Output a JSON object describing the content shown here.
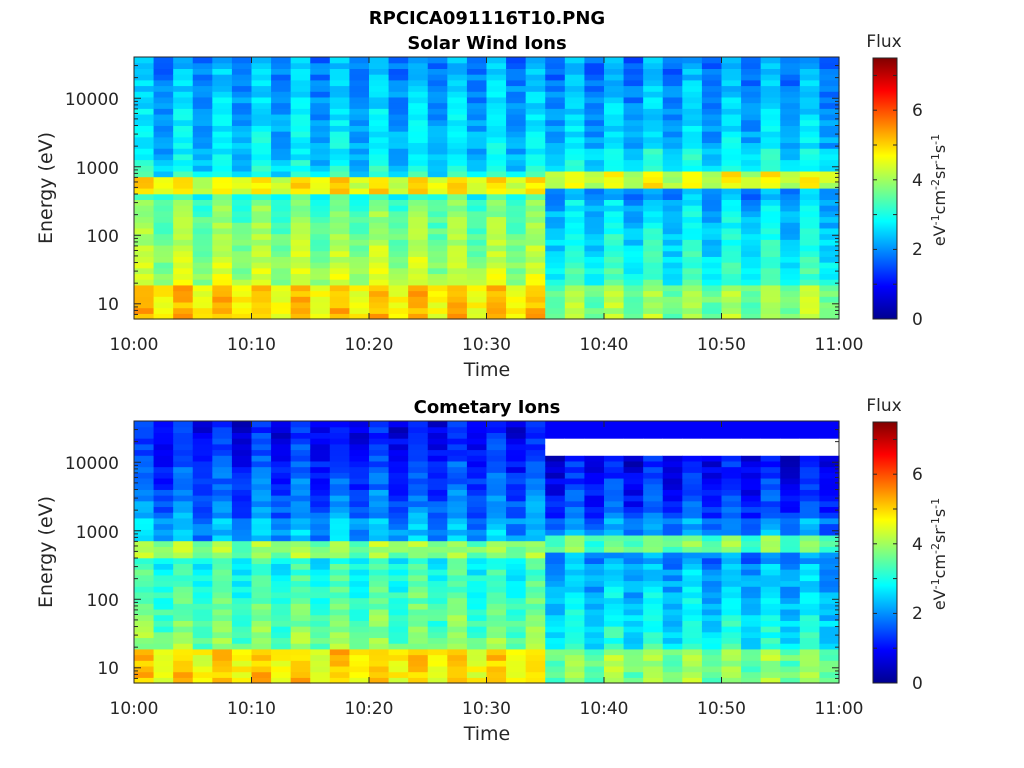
{
  "figure": {
    "title": "RPCICA091116T10.PNG"
  },
  "chart_data": [
    {
      "type": "heatmap",
      "title": "Solar Wind Ions",
      "xlabel": "Time",
      "ylabel": "Energy (eV)",
      "x_ticks": [
        "10:00",
        "10:10",
        "10:20",
        "10:30",
        "10:40",
        "10:50",
        "11:00"
      ],
      "x_range": [
        "10:00",
        "11:00"
      ],
      "y_ticks": [
        "10",
        "100",
        "1000",
        "10000"
      ],
      "y_scale": "log",
      "y_range": [
        6,
        40000
      ],
      "colorbar": {
        "label": "Flux",
        "unit_label": "eV-1cm-2sr-1s-1",
        "ticks": [
          "0",
          "2",
          "4",
          "6"
        ],
        "range": [
          0,
          7.5
        ],
        "colormap": "jet"
      },
      "value_range": [
        0,
        7.5
      ],
      "grid": false
    },
    {
      "type": "heatmap",
      "title": "Cometary Ions",
      "xlabel": "Time",
      "ylabel": "Energy (eV)",
      "x_ticks": [
        "10:00",
        "10:10",
        "10:20",
        "10:30",
        "10:40",
        "10:50",
        "11:00"
      ],
      "x_range": [
        "10:00",
        "11:00"
      ],
      "y_ticks": [
        "10",
        "100",
        "1000",
        "10000"
      ],
      "y_scale": "log",
      "y_range": [
        6,
        40000
      ],
      "colorbar": {
        "label": "Flux",
        "unit_label": "eV-1cm-2sr-1s-1",
        "ticks": [
          "0",
          "2",
          "4",
          "6"
        ],
        "range": [
          0,
          7.5
        ],
        "colormap": "jet"
      },
      "value_range": [
        0,
        7.5
      ],
      "grid": false
    }
  ]
}
